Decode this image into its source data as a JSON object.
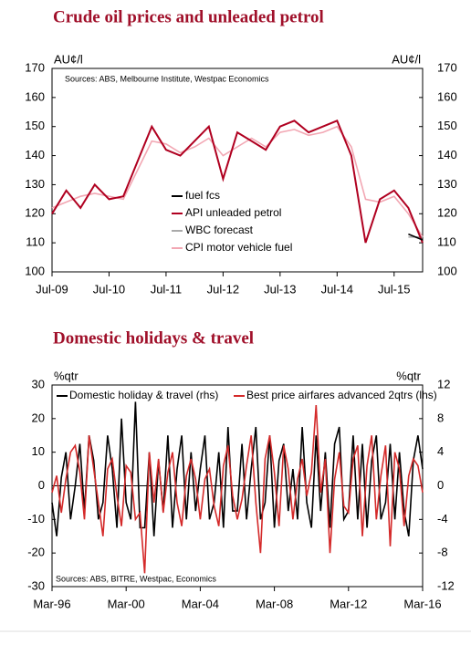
{
  "chart_data": [
    {
      "type": "line",
      "title": "Crude oil prices and unleaded petrol",
      "y_label": "AU¢/l",
      "y2_label": "AU¢/l",
      "source": "Sources: ABS, Melbourne Institute, Westpac Economics",
      "legend": "bottom-center",
      "categories": [
        "Jul-09",
        null,
        null,
        null,
        "Jul-10",
        null,
        null,
        null,
        "Jul-11",
        null,
        null,
        null,
        "Jul-12",
        null,
        null,
        null,
        "Jul-13",
        null,
        null,
        null,
        "Jul-14",
        null,
        null,
        null,
        "Jul-15",
        null,
        null
      ],
      "series": [
        {
          "name": "fuel fcs",
          "color": "#000000",
          "values": [
            null,
            null,
            null,
            null,
            null,
            null,
            null,
            null,
            null,
            null,
            null,
            null,
            null,
            null,
            null,
            null,
            null,
            null,
            null,
            null,
            null,
            null,
            null,
            null,
            null,
            113,
            111
          ]
        },
        {
          "name": "API unleaded petrol",
          "color": "#b00020",
          "values": [
            120,
            128,
            122,
            130,
            125,
            126,
            138,
            150,
            142,
            140,
            145,
            150,
            132,
            148,
            145,
            142,
            150,
            152,
            148,
            150,
            152,
            140,
            110,
            125,
            128,
            122,
            110
          ]
        },
        {
          "name": "WBC forecast",
          "color": "#aaaaaa",
          "values": [
            null,
            null,
            null,
            null,
            null,
            null,
            null,
            null,
            null,
            null,
            null,
            null,
            null,
            null,
            null,
            null,
            null,
            null,
            null,
            null,
            null,
            null,
            null,
            null,
            null,
            112,
            112
          ]
        },
        {
          "name": "CPI motor vehicle fuel",
          "color": "#f2a7b3",
          "values": [
            122,
            124,
            126,
            127,
            126,
            125,
            135,
            145,
            144,
            141,
            143,
            146,
            140,
            143,
            146,
            143,
            148,
            149,
            147,
            148,
            150,
            143,
            125,
            124,
            126,
            120,
            112
          ]
        }
      ],
      "ylim": [
        100,
        170
      ],
      "yticks": [
        100,
        110,
        120,
        130,
        140,
        150,
        160,
        170
      ],
      "y2lim": [
        100,
        170
      ],
      "y2ticks": [
        100,
        110,
        120,
        130,
        140,
        150,
        160,
        170
      ]
    },
    {
      "type": "line",
      "title": "Domestic holidays & travel",
      "y_label": "%qtr",
      "y2_label": "%qtr",
      "source": "Sources: ABS, BITRE, Westpac, Economics",
      "legend": "top",
      "categories": [
        "Mar-96",
        null,
        null,
        null,
        null,
        null,
        null,
        null,
        null,
        null,
        null,
        null,
        null,
        null,
        null,
        null,
        "Mar-00",
        null,
        null,
        null,
        null,
        null,
        null,
        null,
        null,
        null,
        null,
        null,
        null,
        null,
        null,
        null,
        "Mar-04",
        null,
        null,
        null,
        null,
        null,
        null,
        null,
        null,
        null,
        null,
        null,
        null,
        null,
        null,
        null,
        "Mar-08",
        null,
        null,
        null,
        null,
        null,
        null,
        null,
        null,
        null,
        null,
        null,
        null,
        null,
        null,
        null,
        "Mar-12",
        null,
        null,
        null,
        null,
        null,
        null,
        null,
        null,
        null,
        null,
        null,
        null,
        null,
        null,
        null,
        "Mar-16"
      ],
      "series": [
        {
          "name": "Domestic holiday & travel (rhs)",
          "color": "#000000",
          "axis": "y2",
          "values": [
            -2,
            -6,
            1,
            4,
            -4,
            0,
            5,
            -3,
            6,
            3,
            -4,
            -2,
            6,
            2,
            -5,
            8,
            -2,
            -4,
            10,
            -5,
            -5,
            4,
            -6,
            3,
            -3,
            6,
            -5,
            2,
            6,
            -4,
            4,
            -3,
            2,
            6,
            -4,
            -2,
            4,
            -5,
            7,
            -3,
            -3,
            5,
            -4,
            2,
            7,
            -4,
            -2,
            6,
            -5,
            3,
            5,
            -3,
            2,
            -4,
            7,
            -2,
            -5,
            6,
            -3,
            4,
            -5,
            5,
            7,
            -4,
            -3,
            6,
            -4,
            5,
            -5,
            3,
            6,
            -4,
            -2,
            5,
            -4,
            4,
            -3,
            -6,
            3,
            6,
            2
          ]
        },
        {
          "name": "Best price airfares advanced 2qtrs (lhs)",
          "color": "#d42a2a",
          "values": [
            -2,
            3,
            -8,
            2,
            10,
            12,
            4,
            -10,
            15,
            5,
            -5,
            -15,
            5,
            8,
            -3,
            -12,
            6,
            4,
            -10,
            -8,
            -26,
            10,
            -5,
            8,
            -8,
            4,
            10,
            -5,
            -12,
            3,
            8,
            2,
            -10,
            2,
            5,
            -6,
            -12,
            6,
            12,
            -3,
            -10,
            -4,
            6,
            15,
            -5,
            -20,
            8,
            15,
            4,
            -12,
            12,
            5,
            -10,
            2,
            8,
            -3,
            4,
            24,
            -2,
            8,
            -20,
            2,
            10,
            -6,
            -8,
            8,
            12,
            -15,
            6,
            15,
            -10,
            3,
            12,
            -18,
            10,
            5,
            -12,
            3,
            8,
            6,
            -2
          ]
        }
      ],
      "ylim": [
        -30,
        30
      ],
      "yticks": [
        -30,
        -20,
        -10,
        0,
        10,
        20,
        30
      ],
      "y2lim": [
        -12,
        12
      ],
      "y2ticks": [
        -12,
        -8,
        -4,
        0,
        4,
        8,
        12
      ]
    }
  ]
}
